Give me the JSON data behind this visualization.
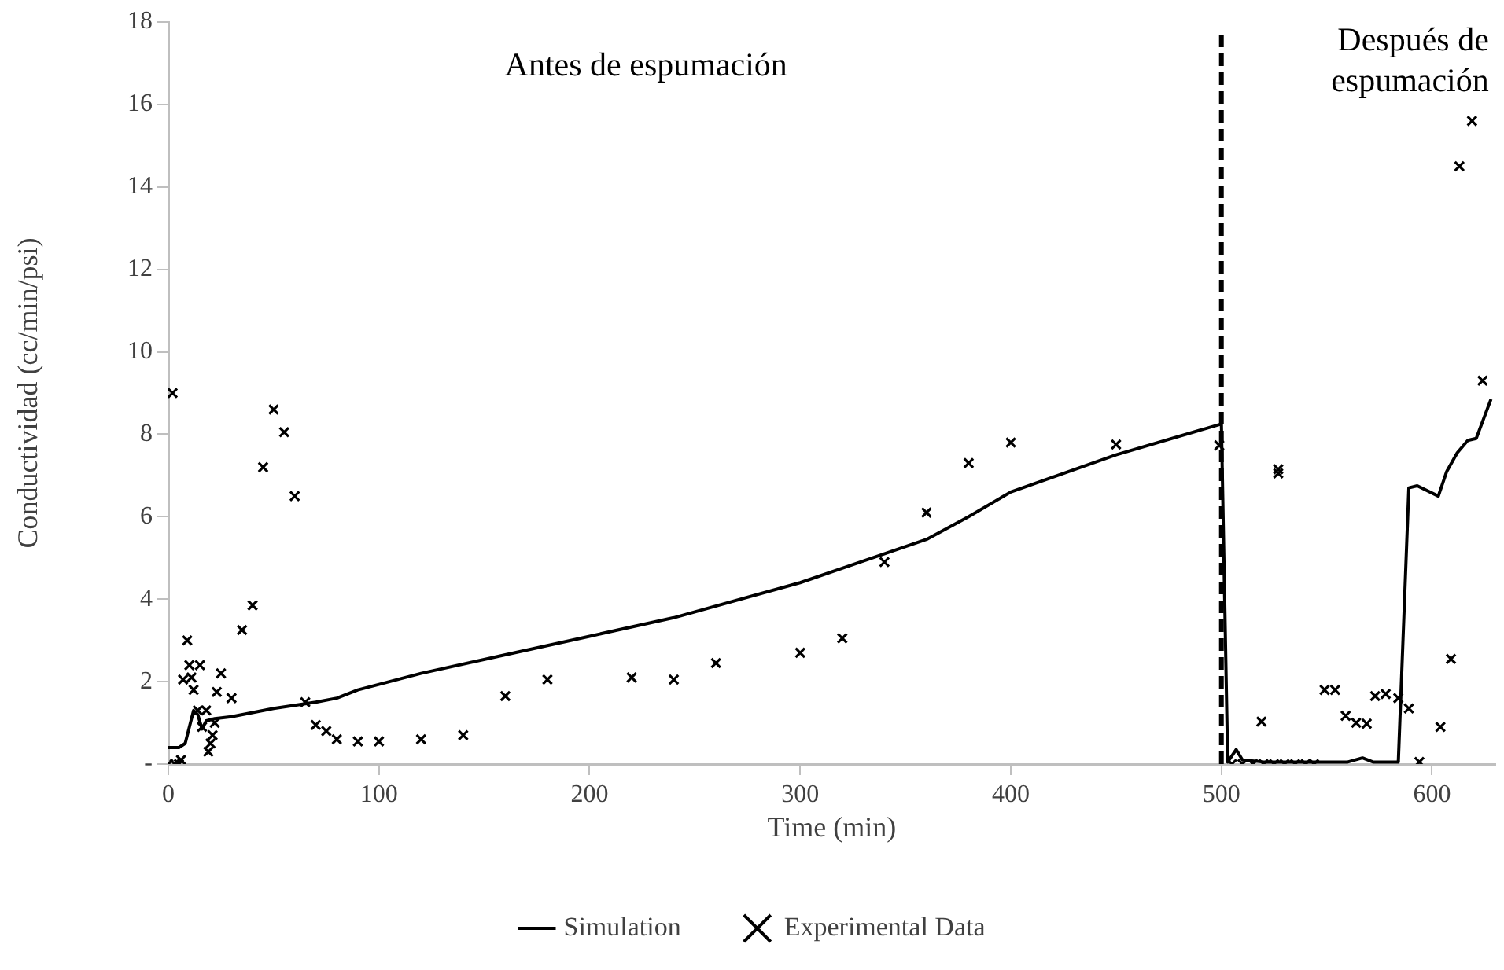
{
  "chart_data": {
    "type": "line",
    "xlabel": "Time (min)",
    "ylabel": "Conductividad (cc/min/psi)",
    "xlim": [
      0,
      630
    ],
    "xticks": [
      0,
      100,
      200,
      300,
      400,
      500,
      600
    ],
    "ylim": [
      0,
      18
    ],
    "yticks": [
      {
        "value": 0,
        "label": "-"
      },
      2,
      4,
      6,
      8,
      10,
      12,
      14,
      16,
      18
    ],
    "grid": false,
    "legend": "bottom",
    "ref_lines": [
      {
        "axis": "x",
        "value": 500,
        "color": "#000000",
        "line_style": "dashed"
      }
    ],
    "annotations": [
      "Antes de espumación",
      "Después de\nespumación"
    ],
    "series": [
      {
        "name": "Simulation",
        "type": "line",
        "color": "#000000",
        "marker": "none",
        "line_style": "solid",
        "x": [
          0,
          5,
          8,
          12,
          14,
          16,
          18,
          22,
          30,
          50,
          70,
          80,
          90,
          120,
          160,
          200,
          240,
          300,
          320,
          360,
          380,
          400,
          450,
          500,
          503,
          507,
          510,
          520,
          560,
          567,
          572,
          584,
          589,
          593,
          603,
          607,
          612,
          617,
          621,
          628
        ],
        "values": [
          0.4,
          0.4,
          0.5,
          1.3,
          1.2,
          0.85,
          1.05,
          1.1,
          1.15,
          1.35,
          1.5,
          1.6,
          1.8,
          2.2,
          2.65,
          3.1,
          3.55,
          4.4,
          4.75,
          5.45,
          6.0,
          6.6,
          7.5,
          8.25,
          0.05,
          0.35,
          0.1,
          0.05,
          0.05,
          0.15,
          0.05,
          0.05,
          6.7,
          6.75,
          6.5,
          7.1,
          7.55,
          7.85,
          7.9,
          8.85
        ]
      },
      {
        "name": "Experimental Data",
        "type": "scatter",
        "color": "#000000",
        "marker": "cross",
        "x": [
          2,
          0,
          3,
          5,
          6,
          7,
          9,
          10,
          11,
          12,
          14,
          15,
          16,
          18,
          19,
          20,
          21,
          22,
          23,
          25,
          30,
          35,
          40,
          45,
          50,
          55,
          60,
          65,
          70,
          75,
          80,
          90,
          100,
          120,
          140,
          160,
          180,
          220,
          240,
          260,
          300,
          320,
          340,
          360,
          380,
          400,
          450,
          499,
          505,
          510,
          515,
          520,
          525,
          530,
          535,
          540,
          544,
          519,
          527,
          527,
          549,
          554,
          559,
          564,
          569,
          573,
          578,
          584,
          589,
          594,
          604,
          609,
          613,
          619,
          624
        ],
        "values": [
          9.0,
          0,
          0,
          0,
          0.1,
          2.05,
          3.0,
          2.4,
          2.1,
          1.8,
          1.3,
          2.4,
          0.9,
          1.3,
          0.3,
          0.5,
          0.7,
          1.0,
          1.75,
          2.2,
          1.6,
          3.25,
          3.85,
          7.2,
          8.6,
          8.05,
          6.5,
          1.5,
          0.95,
          0.8,
          0.6,
          0.55,
          0.55,
          0.6,
          0.7,
          1.65,
          2.05,
          2.1,
          2.05,
          2.45,
          2.7,
          3.05,
          4.9,
          6.1,
          7.3,
          7.8,
          7.75,
          7.73,
          0,
          0,
          0,
          0,
          0,
          0,
          0,
          0,
          0,
          1.03,
          7.15,
          7.05,
          1.8,
          1.8,
          1.17,
          1.0,
          0.98,
          1.65,
          1.7,
          1.6,
          1.35,
          0.05,
          0.9,
          2.55,
          14.5,
          15.6,
          9.3
        ]
      }
    ]
  }
}
